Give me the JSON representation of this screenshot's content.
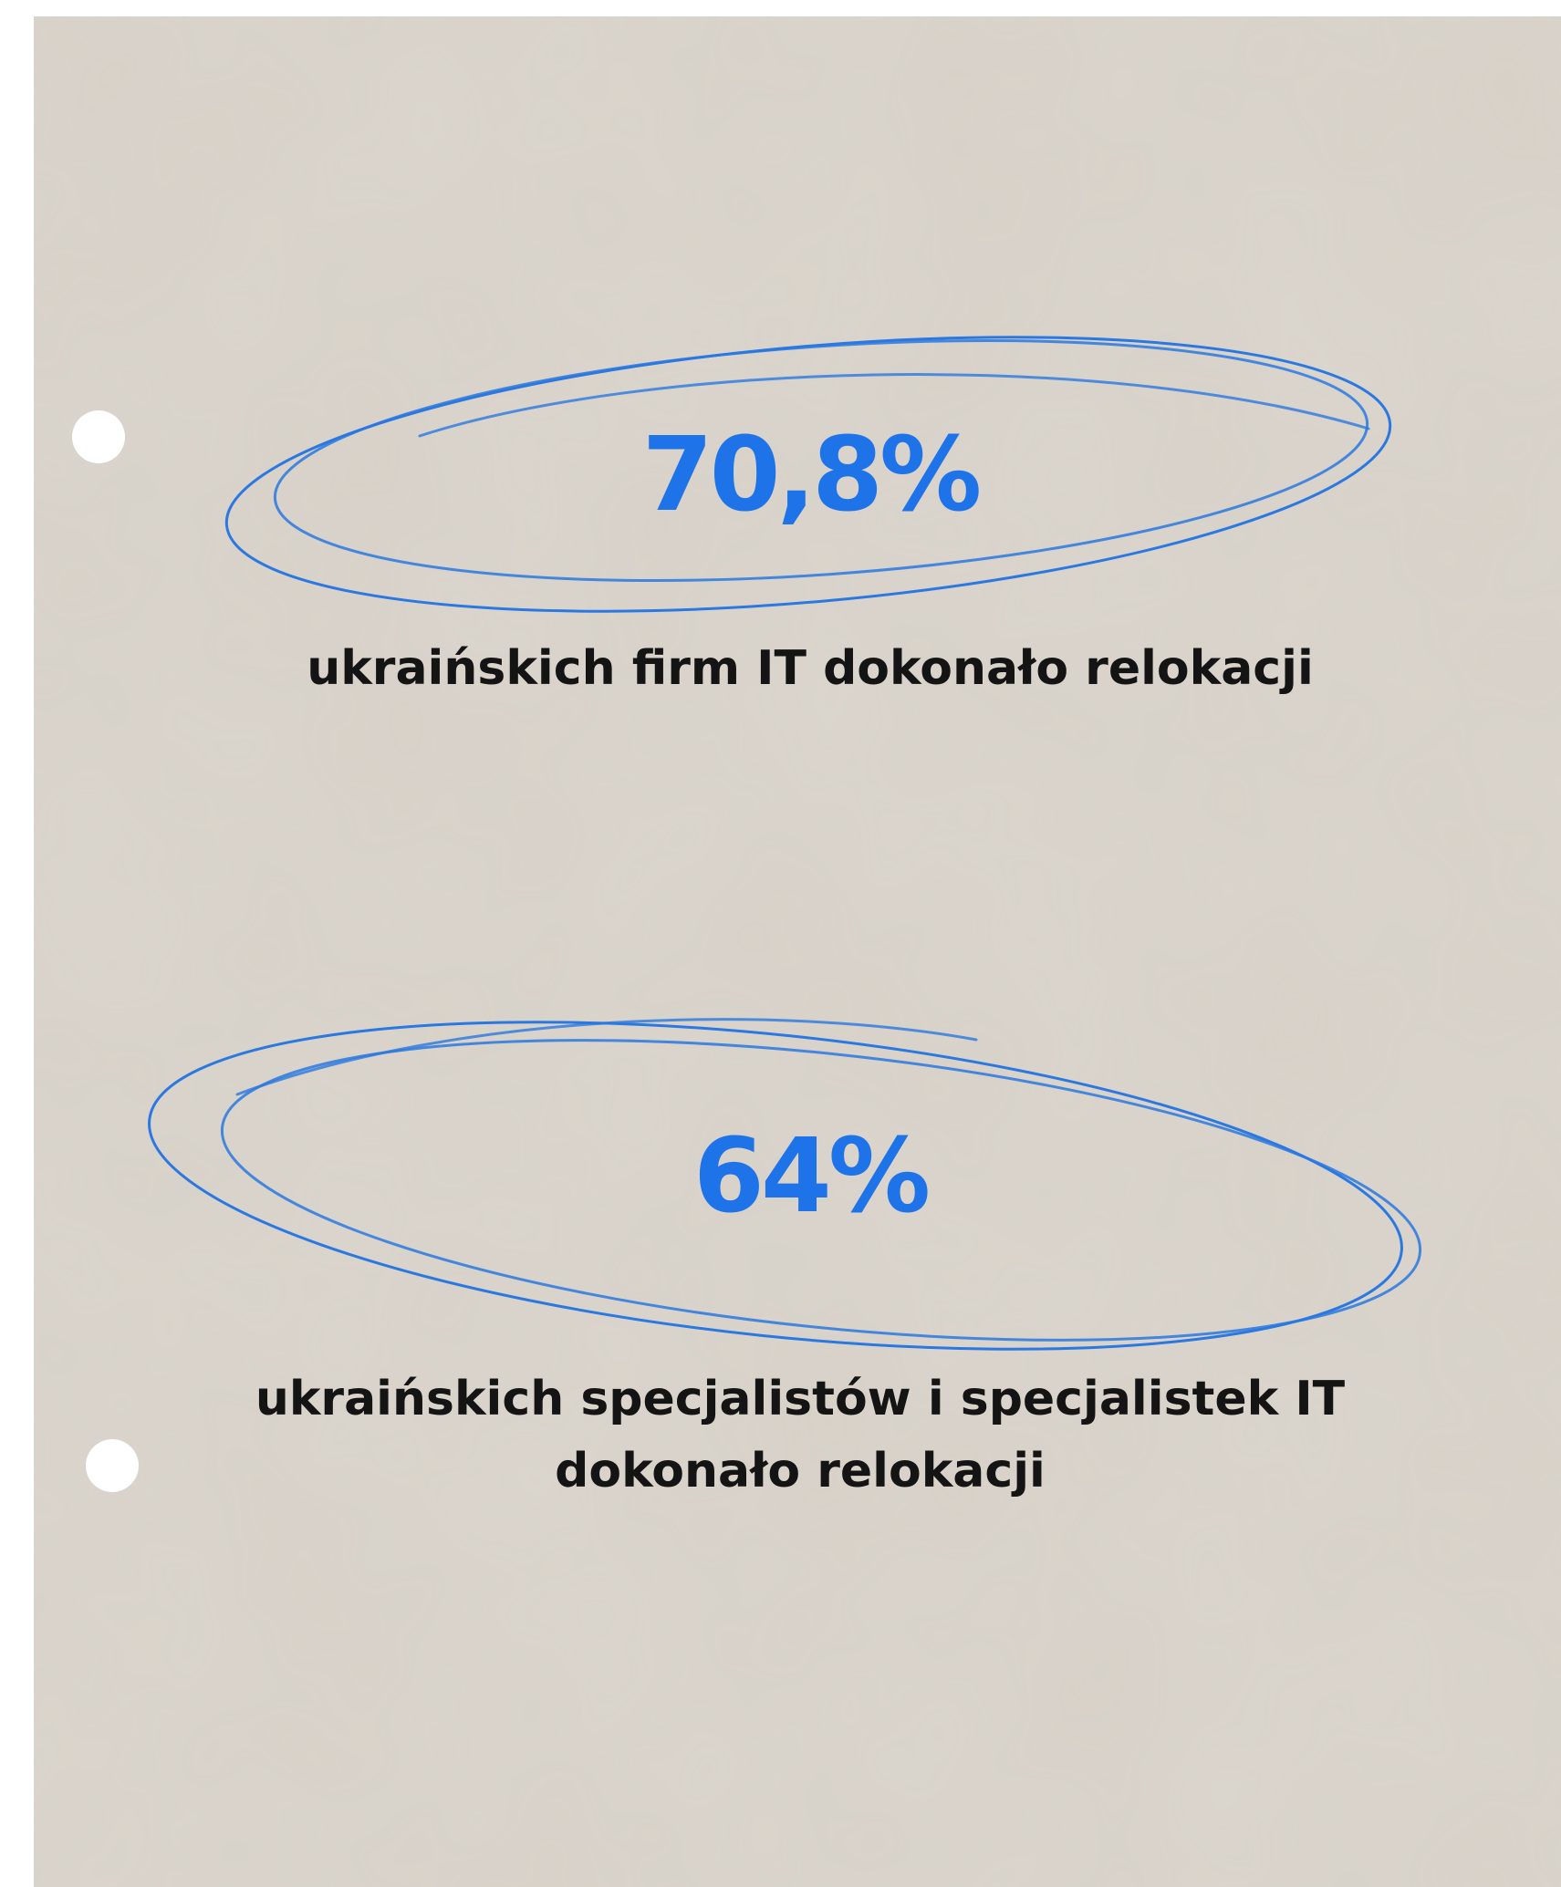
{
  "stats": [
    {
      "value": "70,8%",
      "caption_lines": [
        "ukraińskich firm IT dokonało relokacji"
      ]
    },
    {
      "value": "64%",
      "caption_lines": [
        "ukraińskich specjalistów i specjalistek IT",
        "dokonało relokacji"
      ]
    }
  ]
}
